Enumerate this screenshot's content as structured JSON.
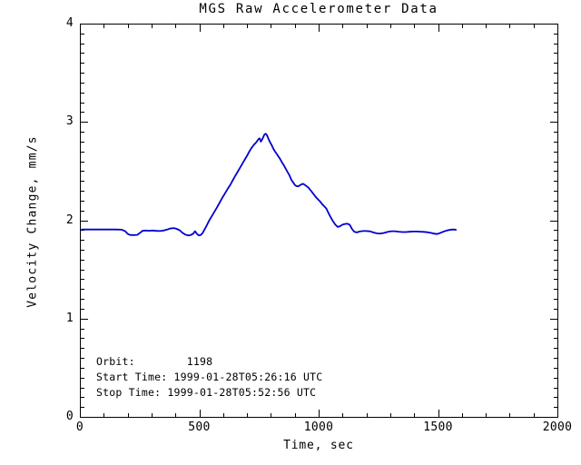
{
  "title": "MGS Raw Accelerometer Data",
  "annotations": {
    "lines": [
      "Orbit:        1198",
      "Start Time: 1999-01-28T05:26:16 UTC",
      "Stop Time: 1999-01-28T05:52:56 UTC"
    ]
  },
  "chart_data": {
    "type": "line",
    "title": "MGS Raw Accelerometer Data",
    "xlabel": "Time, sec",
    "ylabel": "Velocity Change, mm/s",
    "xlim": [
      0,
      2000
    ],
    "ylim": [
      0,
      4
    ],
    "x_major_ticks": [
      0,
      500,
      1000,
      1500,
      2000
    ],
    "x_minor_step": 100,
    "y_major_ticks": [
      0,
      1,
      2,
      3,
      4
    ],
    "y_minor_step": 0.1,
    "grid": false,
    "frame_color": "#000000",
    "line_color": "#0000cc",
    "background_color": "#ffffff",
    "series": [
      {
        "name": "velocity-change",
        "points": [
          [
            8,
            1.906
          ],
          [
            30,
            1.907
          ],
          [
            60,
            1.906
          ],
          [
            90,
            1.907
          ],
          [
            120,
            1.906
          ],
          [
            150,
            1.906
          ],
          [
            175,
            1.904
          ],
          [
            190,
            1.888
          ],
          [
            200,
            1.862
          ],
          [
            210,
            1.85
          ],
          [
            225,
            1.849
          ],
          [
            240,
            1.851
          ],
          [
            252,
            1.872
          ],
          [
            262,
            1.892
          ],
          [
            275,
            1.896
          ],
          [
            290,
            1.893
          ],
          [
            305,
            1.896
          ],
          [
            320,
            1.892
          ],
          [
            335,
            1.89
          ],
          [
            350,
            1.895
          ],
          [
            365,
            1.905
          ],
          [
            380,
            1.917
          ],
          [
            395,
            1.92
          ],
          [
            405,
            1.912
          ],
          [
            418,
            1.898
          ],
          [
            430,
            1.872
          ],
          [
            442,
            1.853
          ],
          [
            455,
            1.846
          ],
          [
            465,
            1.85
          ],
          [
            474,
            1.862
          ],
          [
            482,
            1.888
          ],
          [
            490,
            1.862
          ],
          [
            498,
            1.846
          ],
          [
            506,
            1.85
          ],
          [
            514,
            1.87
          ],
          [
            522,
            1.906
          ],
          [
            532,
            1.95
          ],
          [
            542,
            1.998
          ],
          [
            552,
            2.04
          ],
          [
            563,
            2.085
          ],
          [
            574,
            2.13
          ],
          [
            585,
            2.178
          ],
          [
            596,
            2.225
          ],
          [
            607,
            2.27
          ],
          [
            618,
            2.315
          ],
          [
            630,
            2.36
          ],
          [
            640,
            2.405
          ],
          [
            650,
            2.447
          ],
          [
            660,
            2.49
          ],
          [
            670,
            2.53
          ],
          [
            680,
            2.572
          ],
          [
            690,
            2.615
          ],
          [
            700,
            2.655
          ],
          [
            710,
            2.7
          ],
          [
            720,
            2.74
          ],
          [
            730,
            2.77
          ],
          [
            740,
            2.796
          ],
          [
            748,
            2.825
          ],
          [
            753,
            2.833
          ],
          [
            758,
            2.8
          ],
          [
            763,
            2.82
          ],
          [
            768,
            2.845
          ],
          [
            773,
            2.872
          ],
          [
            778,
            2.88
          ],
          [
            783,
            2.868
          ],
          [
            788,
            2.84
          ],
          [
            793,
            2.81
          ],
          [
            798,
            2.787
          ],
          [
            804,
            2.76
          ],
          [
            810,
            2.73
          ],
          [
            817,
            2.7
          ],
          [
            824,
            2.676
          ],
          [
            831,
            2.65
          ],
          [
            838,
            2.625
          ],
          [
            846,
            2.59
          ],
          [
            854,
            2.56
          ],
          [
            862,
            2.525
          ],
          [
            870,
            2.49
          ],
          [
            878,
            2.455
          ],
          [
            886,
            2.41
          ],
          [
            893,
            2.385
          ],
          [
            900,
            2.36
          ],
          [
            907,
            2.347
          ],
          [
            914,
            2.345
          ],
          [
            921,
            2.355
          ],
          [
            928,
            2.365
          ],
          [
            935,
            2.37
          ],
          [
            942,
            2.36
          ],
          [
            950,
            2.345
          ],
          [
            958,
            2.33
          ],
          [
            966,
            2.305
          ],
          [
            974,
            2.28
          ],
          [
            982,
            2.255
          ],
          [
            990,
            2.23
          ],
          [
            998,
            2.21
          ],
          [
            1006,
            2.19
          ],
          [
            1014,
            2.165
          ],
          [
            1022,
            2.145
          ],
          [
            1032,
            2.12
          ],
          [
            1042,
            2.07
          ],
          [
            1051,
            2.028
          ],
          [
            1060,
            1.99
          ],
          [
            1070,
            1.955
          ],
          [
            1080,
            1.932
          ],
          [
            1090,
            1.94
          ],
          [
            1100,
            1.955
          ],
          [
            1110,
            1.962
          ],
          [
            1120,
            1.965
          ],
          [
            1130,
            1.955
          ],
          [
            1140,
            1.91
          ],
          [
            1150,
            1.882
          ],
          [
            1160,
            1.876
          ],
          [
            1172,
            1.885
          ],
          [
            1185,
            1.89
          ],
          [
            1200,
            1.89
          ],
          [
            1215,
            1.887
          ],
          [
            1230,
            1.875
          ],
          [
            1245,
            1.866
          ],
          [
            1260,
            1.865
          ],
          [
            1275,
            1.872
          ],
          [
            1290,
            1.882
          ],
          [
            1305,
            1.888
          ],
          [
            1320,
            1.888
          ],
          [
            1335,
            1.884
          ],
          [
            1350,
            1.88
          ],
          [
            1365,
            1.88
          ],
          [
            1380,
            1.883
          ],
          [
            1395,
            1.885
          ],
          [
            1410,
            1.885
          ],
          [
            1425,
            1.884
          ],
          [
            1440,
            1.882
          ],
          [
            1455,
            1.878
          ],
          [
            1470,
            1.872
          ],
          [
            1483,
            1.864
          ],
          [
            1495,
            1.86
          ],
          [
            1507,
            1.868
          ],
          [
            1520,
            1.882
          ],
          [
            1532,
            1.892
          ],
          [
            1545,
            1.9
          ],
          [
            1557,
            1.905
          ],
          [
            1566,
            1.906
          ],
          [
            1575,
            1.903
          ]
        ]
      }
    ]
  }
}
